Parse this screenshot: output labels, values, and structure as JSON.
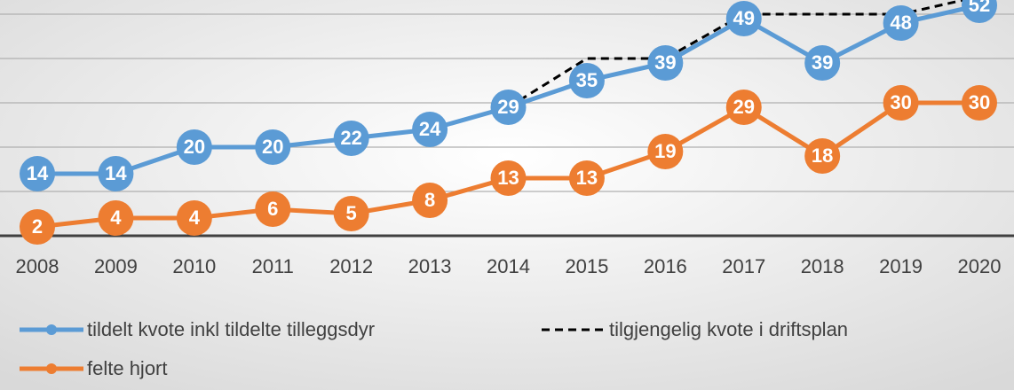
{
  "chart_data": {
    "type": "line",
    "categories": [
      "2008",
      "2009",
      "2010",
      "2011",
      "2012",
      "2013",
      "2014",
      "2015",
      "2016",
      "2017",
      "2018",
      "2019",
      "2020"
    ],
    "series": [
      {
        "name": "tildelt kvote inkl tildelte tilleggsdyr",
        "color": "#5b9bd5",
        "marker": true,
        "dashed": false,
        "values": [
          14,
          14,
          20,
          20,
          22,
          24,
          29,
          35,
          39,
          49,
          39,
          48,
          52
        ]
      },
      {
        "name": "tilgjengelig kvote i driftsplan",
        "color": "#000000",
        "marker": false,
        "dashed": true,
        "values": [
          null,
          null,
          null,
          null,
          null,
          null,
          29,
          40,
          40,
          50,
          50,
          50,
          54
        ]
      },
      {
        "name": "felte hjort",
        "color": "#ed7d31",
        "marker": true,
        "dashed": false,
        "values": [
          2,
          4,
          4,
          6,
          5,
          8,
          13,
          13,
          19,
          29,
          18,
          30,
          30
        ]
      }
    ],
    "ylim": [
      0,
      53.2
    ],
    "yticks": [
      0,
      10,
      20,
      30,
      40,
      50
    ],
    "grid": true
  }
}
